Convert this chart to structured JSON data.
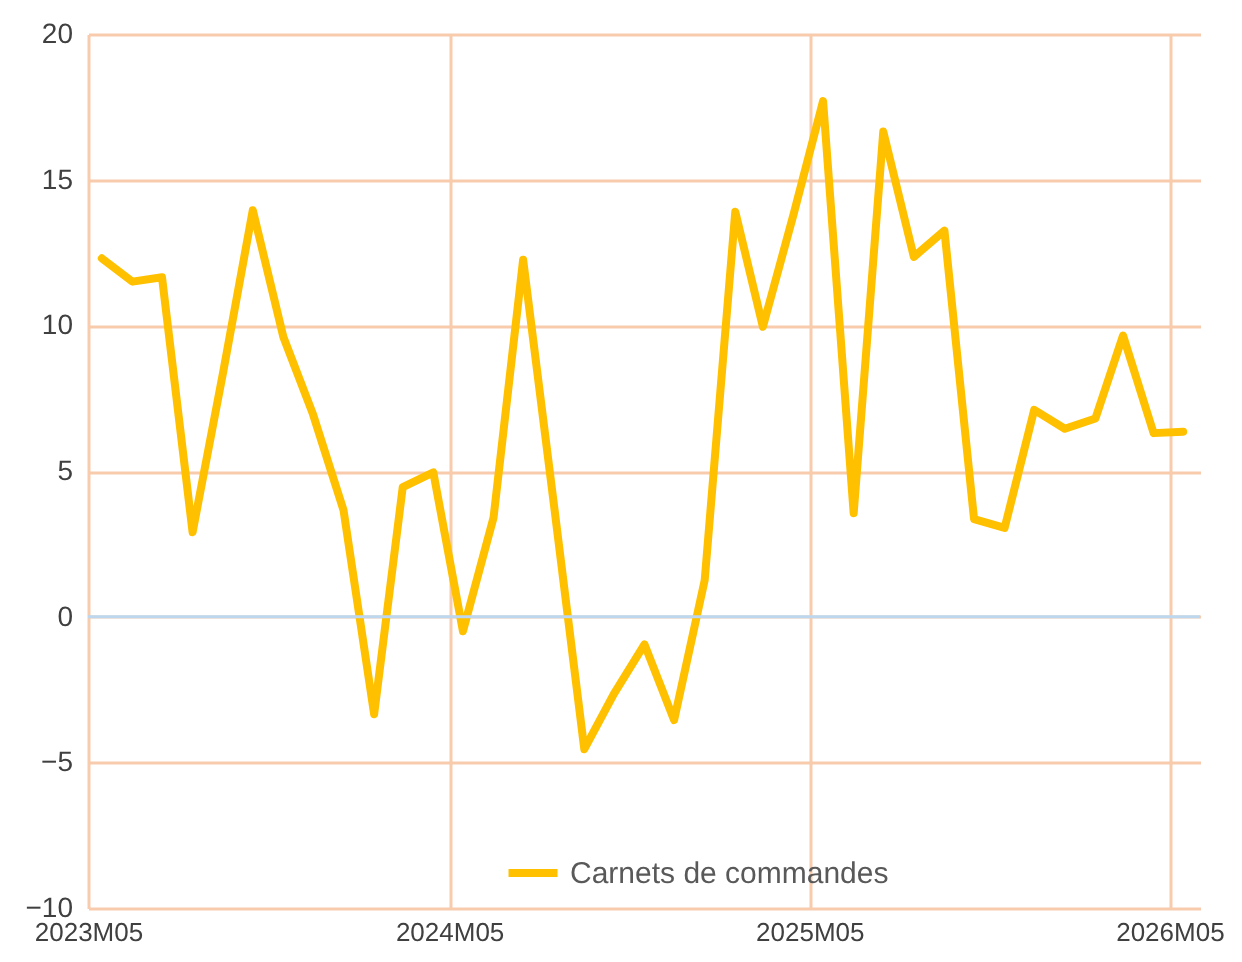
{
  "chart_data": {
    "type": "line",
    "x": [
      "2023-05-15",
      "2023-06-15",
      "2023-07-15",
      "2023-08-15",
      "2023-09-15",
      "2023-10-15",
      "2023-11-15",
      "2023-12-15",
      "2024-01-15",
      "2024-02-15",
      "2024-03-15",
      "2024-04-15",
      "2024-05-15",
      "2024-06-15",
      "2024-07-15",
      "2024-08-15",
      "2024-09-15",
      "2024-10-15",
      "2024-11-15",
      "2024-12-15",
      "2025-01-15",
      "2025-02-15",
      "2025-03-15",
      "2025-04-15",
      "2025-05-15",
      "2025-06-15",
      "2025-07-15",
      "2025-08-15",
      "2025-09-15",
      "2025-10-15",
      "2025-11-15",
      "2025-12-15",
      "2026-01-15",
      "2026-02-15",
      "2026-03-15",
      "2026-04-15",
      "2026-05-15"
    ],
    "series": [
      {
        "name": "Carnets de commandes",
        "color": "#ffc000",
        "values": [
          12.3,
          11.5,
          11.65,
          2.9,
          8.4,
          13.95,
          9.6,
          6.95,
          3.65,
          -3.35,
          4.45,
          4.95,
          -0.5,
          3.4,
          12.25,
          3.9,
          -4.55,
          -2.65,
          -0.95,
          -3.55,
          1.25,
          13.9,
          9.95,
          13.8,
          17.7,
          3.55,
          16.65,
          12.35,
          13.25,
          3.35,
          3.05,
          7.1,
          6.45,
          6.8,
          9.65,
          6.3,
          6.35
        ]
      }
    ],
    "xlim": [
      "2023-05-01",
      "2026-06-01"
    ],
    "xticks": [
      {
        "value": "2023-05-01",
        "label": "2023M05"
      },
      {
        "value": "2024-05-01",
        "label": "2024M05"
      },
      {
        "value": "2025-05-01",
        "label": "2025M05"
      },
      {
        "value": "2026-05-01",
        "label": "2026M05"
      }
    ],
    "ylim": [
      -10,
      20
    ],
    "yticks": [
      -10,
      -5,
      0,
      5,
      10,
      15,
      20
    ],
    "ref_lines": [
      {
        "axis": "y",
        "value": 0,
        "color": "#bdd7ee"
      }
    ],
    "grid": true,
    "legend": "bottom",
    "marker": "none",
    "line_style": "solid"
  }
}
